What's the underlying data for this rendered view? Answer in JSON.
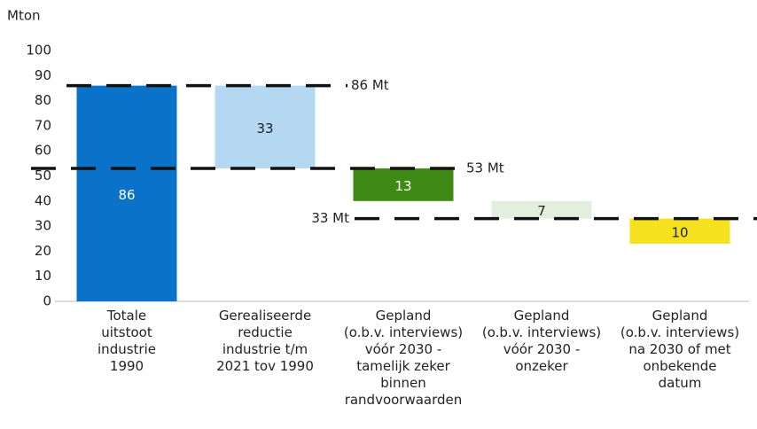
{
  "chart_data": {
    "type": "waterfall",
    "y_label": "Mton",
    "categories": [
      [
        "Totale",
        "uitstoot",
        "industrie",
        "1990"
      ],
      [
        "Gerealiseerde",
        "reductie",
        "industrie t/m",
        "2021 tov 1990"
      ],
      [
        "Gepland",
        "(o.b.v. interviews)",
        "vóór 2030 -",
        "tamelijk zeker",
        "binnen",
        "randvoorwaarden"
      ],
      [
        "Gepland",
        "(o.b.v. interviews)",
        "vóór 2030 -",
        "onzeker"
      ],
      [
        "Gepland",
        "(o.b.v. interviews)",
        "na 2030 of met",
        "onbekende",
        "datum"
      ]
    ],
    "values": [
      86,
      33,
      13,
      7,
      10
    ],
    "colors": [
      "#0a72c8",
      "#b4d8f1",
      "#3e8a15",
      "#e2efdc",
      "#f6e11f"
    ],
    "label_colors": [
      "#ffffff",
      "#222222",
      "#ffffff",
      "#222222",
      "#222222"
    ],
    "reference_lines": [
      {
        "value": 86,
        "label": "86 Mt"
      },
      {
        "value": 53,
        "label": "53 Mt"
      },
      {
        "value": 33,
        "label": "33 Mt"
      }
    ],
    "ylim": [
      0,
      100
    ],
    "yticks": [
      0,
      10,
      20,
      30,
      40,
      50,
      60,
      70,
      80,
      90,
      100
    ],
    "grid": false
  }
}
